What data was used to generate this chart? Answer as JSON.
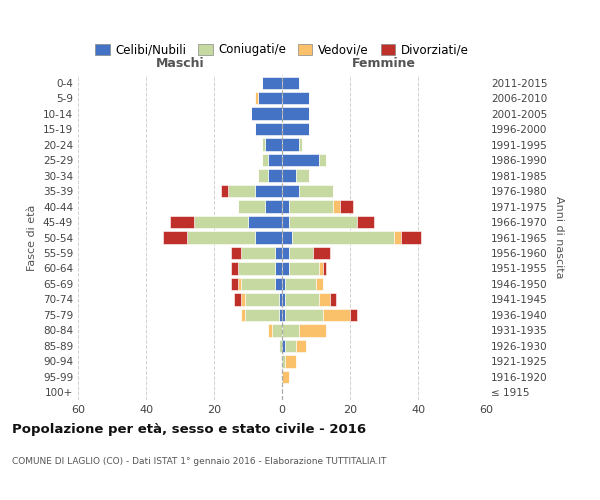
{
  "age_groups": [
    "100+",
    "95-99",
    "90-94",
    "85-89",
    "80-84",
    "75-79",
    "70-74",
    "65-69",
    "60-64",
    "55-59",
    "50-54",
    "45-49",
    "40-44",
    "35-39",
    "30-34",
    "25-29",
    "20-24",
    "15-19",
    "10-14",
    "5-9",
    "0-4"
  ],
  "birth_years": [
    "≤ 1915",
    "1916-1920",
    "1921-1925",
    "1926-1930",
    "1931-1935",
    "1936-1940",
    "1941-1945",
    "1946-1950",
    "1951-1955",
    "1956-1960",
    "1961-1965",
    "1966-1970",
    "1971-1975",
    "1976-1980",
    "1981-1985",
    "1986-1990",
    "1991-1995",
    "1996-2000",
    "2001-2005",
    "2006-2010",
    "2011-2015"
  ],
  "maschi": {
    "celibi": [
      0,
      0,
      0,
      0,
      0,
      1,
      1,
      2,
      2,
      2,
      8,
      10,
      5,
      8,
      4,
      4,
      5,
      8,
      9,
      7,
      6
    ],
    "coniugati": [
      0,
      0,
      0,
      1,
      3,
      10,
      10,
      10,
      11,
      10,
      20,
      16,
      8,
      8,
      3,
      2,
      1,
      0,
      0,
      0,
      0
    ],
    "vedovi": [
      0,
      0,
      0,
      0,
      1,
      1,
      1,
      1,
      0,
      0,
      0,
      0,
      0,
      0,
      0,
      0,
      0,
      0,
      0,
      1,
      0
    ],
    "divorziati": [
      0,
      0,
      0,
      0,
      0,
      0,
      2,
      2,
      2,
      3,
      7,
      7,
      0,
      2,
      0,
      0,
      0,
      0,
      0,
      0,
      0
    ]
  },
  "femmine": {
    "nubili": [
      0,
      0,
      0,
      1,
      0,
      1,
      1,
      1,
      2,
      2,
      3,
      2,
      2,
      5,
      4,
      11,
      5,
      8,
      8,
      8,
      5
    ],
    "coniugate": [
      0,
      0,
      1,
      3,
      5,
      11,
      10,
      9,
      9,
      7,
      30,
      20,
      13,
      10,
      4,
      2,
      1,
      0,
      0,
      0,
      0
    ],
    "vedove": [
      0,
      2,
      3,
      3,
      8,
      8,
      3,
      2,
      1,
      0,
      2,
      0,
      2,
      0,
      0,
      0,
      0,
      0,
      0,
      0,
      0
    ],
    "divorziate": [
      0,
      0,
      0,
      0,
      0,
      2,
      2,
      0,
      1,
      5,
      6,
      5,
      4,
      0,
      0,
      0,
      0,
      0,
      0,
      0,
      0
    ]
  },
  "colors": {
    "celibi": "#4472c4",
    "coniugati": "#c6d9a0",
    "vedovi": "#fac06a",
    "divorziati": "#c0302a"
  },
  "xlim": 60,
  "title": "Popolazione per età, sesso e stato civile - 2016",
  "subtitle": "COMUNE DI LAGLIO (CO) - Dati ISTAT 1° gennaio 2016 - Elaborazione TUTTITALIA.IT",
  "legend_labels": [
    "Celibi/Nubili",
    "Coniugati/e",
    "Vedovi/e",
    "Divorziati/e"
  ],
  "label_maschi": "Maschi",
  "label_femmine": "Femmine",
  "ylabel_left": "Fasce di età",
  "ylabel_right": "Anni di nascita",
  "background_color": "#ffffff",
  "grid_color": "#cccccc"
}
